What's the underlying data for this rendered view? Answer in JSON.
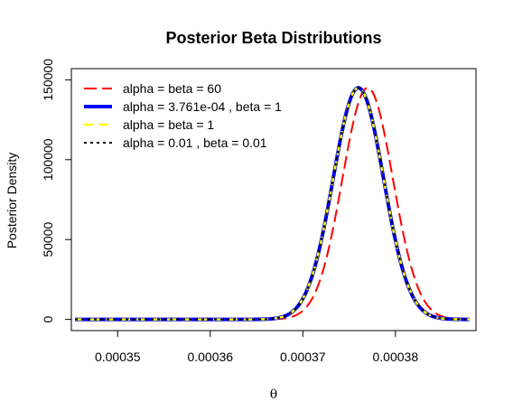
{
  "chart_data": {
    "type": "line",
    "title": "Posterior Beta Distributions",
    "xlabel": "θ",
    "ylabel": "Posterior Density",
    "xlim": [
      0.000345,
      0.0003887
    ],
    "ylim": [
      -7000,
      157000
    ],
    "xticks": [
      {
        "value": 0.00035,
        "label": "0.00035"
      },
      {
        "value": 0.00036,
        "label": "0.00036"
      },
      {
        "value": 0.00037,
        "label": "0.00037"
      },
      {
        "value": 0.00038,
        "label": "0.00038"
      }
    ],
    "yticks": [
      {
        "value": 0,
        "label": "0"
      },
      {
        "value": 50000,
        "label": "50000"
      },
      {
        "value": 100000,
        "label": "100000"
      },
      {
        "value": 150000,
        "label": "150000"
      }
    ],
    "legend_position": "top-left",
    "grid": false,
    "series": [
      {
        "name": "alpha = beta =  60",
        "color": "#ff0000",
        "dash": "long-dash",
        "width": 2,
        "mode": 0.000377,
        "sd": 2.73e-06,
        "peak": 145000,
        "x_range": [
          0.0003454,
          0.000388
        ]
      },
      {
        "name": "alpha = 3.761e-04 , beta = 1",
        "color": "#0000ff",
        "dash": "solid",
        "width": 4,
        "mode": 0.000376,
        "sd": 2.73e-06,
        "peak": 145000,
        "x_range": [
          0.0003454,
          0.000388
        ]
      },
      {
        "name": "alpha = beta = 1",
        "color": "#ffff00",
        "dash": "dashed",
        "width": 2.5,
        "mode": 0.000376,
        "sd": 2.73e-06,
        "peak": 145000,
        "x_range": [
          0.0003454,
          0.000388
        ]
      },
      {
        "name": "alpha = 0.01 , beta = 0.01",
        "color": "#000000",
        "dash": "dotted",
        "width": 2,
        "mode": 0.000376,
        "sd": 2.73e-06,
        "peak": 145000,
        "x_range": [
          0.0003454,
          0.000388
        ]
      }
    ]
  }
}
